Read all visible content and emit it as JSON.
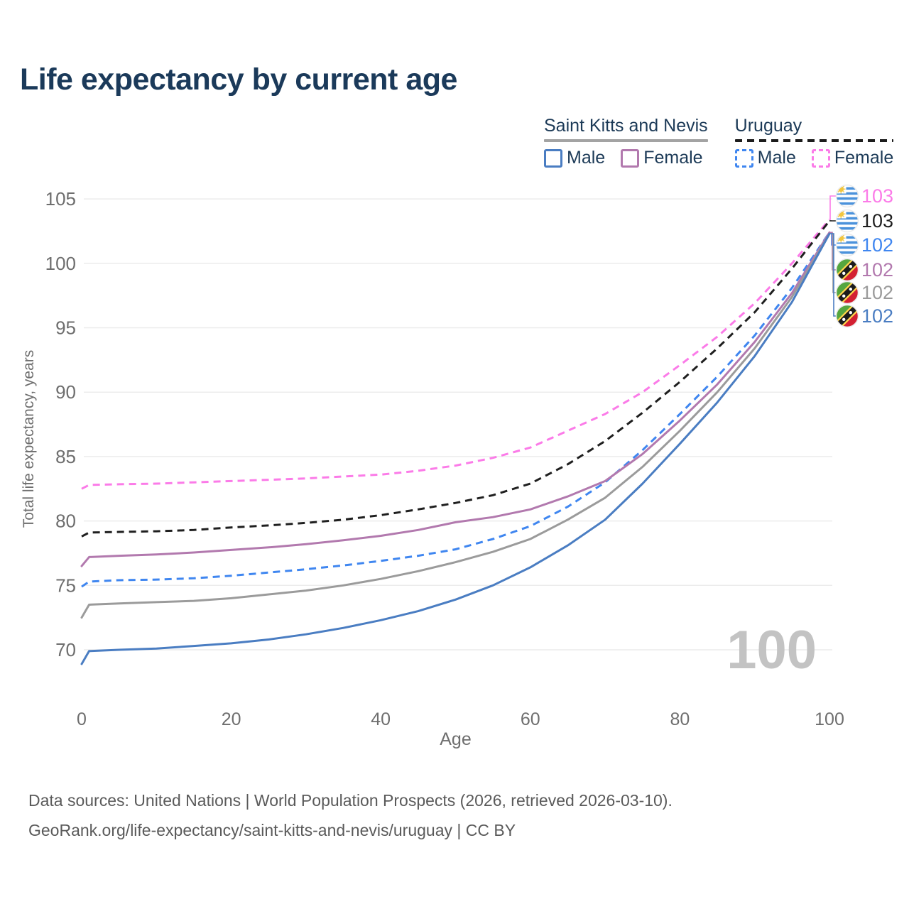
{
  "title": "Life expectancy by current age",
  "legend": {
    "groups": [
      {
        "label": "Saint Kitts and Nevis",
        "underline": "solid",
        "underline_color": "#a3a3a3",
        "items": [
          {
            "label": "Male",
            "color": "#4a7dc2",
            "swatch_style": "solid"
          },
          {
            "label": "Female",
            "color": "#b279ae",
            "swatch_style": "solid"
          }
        ]
      },
      {
        "label": "Uruguay",
        "underline": "dashed",
        "underline_color": "#1c1c1c",
        "items": [
          {
            "label": "Male",
            "color": "#3f86f0",
            "swatch_style": "dashed"
          },
          {
            "label": "Female",
            "color": "#fb7be8",
            "swatch_style": "dashed"
          }
        ]
      }
    ]
  },
  "chart_data": {
    "type": "line",
    "title": "Life expectancy by current age",
    "xlabel": "Age",
    "ylabel": "Total life expectancy, years",
    "xlim": [
      0,
      100
    ],
    "ylim": [
      67,
      106.5
    ],
    "xticks": [
      0,
      20,
      40,
      60,
      80,
      100
    ],
    "yticks": [
      70,
      75,
      80,
      85,
      90,
      95,
      100,
      105
    ],
    "grid": "horizontal-only",
    "gridline_color": "#ececec",
    "axis_text_color": "#6e6e6e",
    "legend_position": "top-right",
    "watermark": "100",
    "watermark_color": "#c3c3c3",
    "x": [
      0,
      1,
      5,
      10,
      15,
      20,
      25,
      30,
      35,
      40,
      45,
      50,
      55,
      60,
      65,
      70,
      75,
      80,
      85,
      90,
      95,
      100
    ],
    "series": [
      {
        "name": "Uruguay Female",
        "country": "Uruguay",
        "sex": "Female",
        "style": "dashed",
        "color": "#fb7be8",
        "end_label": "103",
        "values": [
          82.5,
          82.8,
          82.85,
          82.9,
          83.0,
          83.1,
          83.2,
          83.3,
          83.45,
          83.6,
          83.9,
          84.3,
          84.9,
          85.7,
          87.0,
          88.3,
          90.0,
          92.1,
          94.3,
          96.9,
          100.0,
          103.4
        ]
      },
      {
        "name": "Uruguay",
        "country": "Uruguay",
        "sex": "Both",
        "style": "dashed",
        "color": "#1f1f1f",
        "end_label": "103",
        "values": [
          78.8,
          79.1,
          79.15,
          79.2,
          79.3,
          79.5,
          79.65,
          79.85,
          80.1,
          80.45,
          80.9,
          81.4,
          82.0,
          82.9,
          84.4,
          86.2,
          88.4,
          90.8,
          93.4,
          96.2,
          99.6,
          103.3
        ]
      },
      {
        "name": "Uruguay Male",
        "country": "Uruguay",
        "sex": "Male",
        "style": "dashed",
        "color": "#3f86f0",
        "end_label": "102",
        "values": [
          74.9,
          75.3,
          75.4,
          75.45,
          75.55,
          75.75,
          76.0,
          76.25,
          76.55,
          76.9,
          77.3,
          77.8,
          78.6,
          79.6,
          81.1,
          83.0,
          85.5,
          88.3,
          91.2,
          94.4,
          98.1,
          102.4
        ]
      },
      {
        "name": "Saint Kitts and Nevis Female",
        "country": "Saint Kitts and Nevis",
        "sex": "Female",
        "style": "solid",
        "color": "#b279ae",
        "end_label": "102",
        "values": [
          76.5,
          77.2,
          77.3,
          77.4,
          77.55,
          77.75,
          77.95,
          78.2,
          78.5,
          78.85,
          79.3,
          79.9,
          80.3,
          80.9,
          81.9,
          83.1,
          85.2,
          87.8,
          90.6,
          93.9,
          97.7,
          102.4
        ]
      },
      {
        "name": "Saint Kitts and Nevis",
        "country": "Saint Kitts and Nevis",
        "sex": "Both",
        "style": "solid",
        "color": "#9b9b9b",
        "end_label": "102",
        "values": [
          72.5,
          73.5,
          73.6,
          73.7,
          73.8,
          74.0,
          74.3,
          74.6,
          75.0,
          75.5,
          76.1,
          76.8,
          77.6,
          78.6,
          80.1,
          81.8,
          84.2,
          87.0,
          90.0,
          93.4,
          97.4,
          102.3
        ]
      },
      {
        "name": "Saint Kitts and Nevis Male",
        "country": "Saint Kitts and Nevis",
        "sex": "Male",
        "style": "solid",
        "color": "#4a7dc2",
        "end_label": "102",
        "values": [
          68.9,
          69.9,
          70.0,
          70.1,
          70.3,
          70.5,
          70.8,
          71.2,
          71.7,
          72.3,
          73.0,
          73.9,
          75.0,
          76.4,
          78.1,
          80.1,
          82.9,
          86.0,
          89.2,
          92.8,
          97.0,
          102.3
        ]
      }
    ]
  },
  "end_labels": [
    {
      "value": "103",
      "flag": "uruguay",
      "color": "#fb7be8"
    },
    {
      "value": "103",
      "flag": "uruguay",
      "color": "#1f1f1f"
    },
    {
      "value": "102",
      "flag": "uruguay",
      "color": "#3f86f0"
    },
    {
      "value": "102",
      "flag": "saint-kitts-and-nevis",
      "color": "#b279ae"
    },
    {
      "value": "102",
      "flag": "saint-kitts-and-nevis",
      "color": "#9b9b9b"
    },
    {
      "value": "102",
      "flag": "saint-kitts-and-nevis",
      "color": "#4a7dc2"
    }
  ],
  "footer": {
    "line1": "Data sources: United Nations | World Population Prospects (2026, retrieved 2026-03-10).",
    "line2": "GeoRank.org/life-expectancy/saint-kitts-and-nevis/uruguay | CC BY"
  }
}
